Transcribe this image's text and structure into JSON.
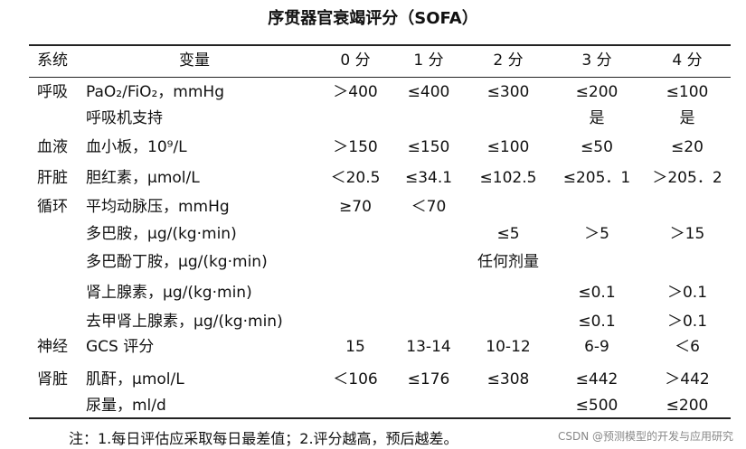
{
  "title": "序贯器官衰竭评分（SOFA）",
  "table": {
    "header": [
      "系统",
      "变量",
      "0 分",
      "1 分",
      "2 分",
      "3 分",
      "4 分"
    ],
    "rows": [
      [
        "呼吸",
        "PaO₂/FiO₂，mmHg",
        "＞400",
        "≤400",
        "≤300",
        "≤200",
        "≤100"
      ],
      [
        null,
        "呼吸机支持",
        null,
        null,
        null,
        "是",
        "是"
      ],
      [
        "血液",
        "血小板，10⁹/L",
        "＞150",
        "≤150",
        "≤100",
        "≤50",
        "≤20"
      ],
      [
        "肝脏",
        "胆红素，μmol/L",
        "＜20.5",
        "≤34.1",
        "≤102.5",
        "≤205．1",
        "＞205．2"
      ],
      [
        "循环",
        "平均动脉压，mmHg",
        "≥70",
        "＜70",
        null,
        null,
        null
      ],
      [
        null,
        "多巴胺，μg/(kg·min)",
        null,
        null,
        "≤5",
        "＞5",
        "＞15"
      ],
      [
        null,
        "多巴酚丁胺，μg/(kg·min)",
        null,
        null,
        "任何剂量",
        null,
        null
      ],
      [
        null,
        "肾上腺素，μg/(kg·min)",
        null,
        null,
        null,
        "≤0.1",
        "＞0.1"
      ],
      [
        null,
        "去甲肾上腺素，μg/(kg·min)",
        null,
        null,
        null,
        "≤0.1",
        "＞0.1"
      ],
      [
        "神经",
        "GCS 评分",
        "15",
        "13-14",
        "10-12",
        "6-9",
        "＜6"
      ],
      [
        "肾脏",
        "肌酐，μmol/L",
        "＜106",
        "≤176",
        "≤308",
        "≤442",
        "＞442"
      ],
      [
        null,
        "尿量，ml/d",
        null,
        null,
        null,
        "≤500",
        "≤200"
      ]
    ]
  },
  "note": "注：1.每日评估应采取每日最差值；2.评分越高，预后越差。",
  "watermark": "CSDN @预测模型的开发与应用研究"
}
